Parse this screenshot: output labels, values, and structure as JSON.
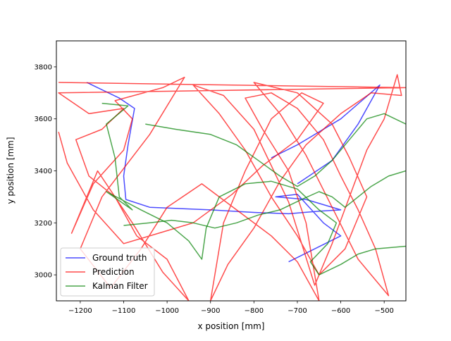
{
  "chart_data": {
    "type": "line",
    "title": "",
    "xlabel": "x position [mm]",
    "ylabel": "y position [mm]",
    "xlim": [
      -1255,
      -450
    ],
    "ylim": [
      2900,
      3900
    ],
    "x_ticks": [
      -1200,
      -1100,
      -1000,
      -900,
      -800,
      -700,
      -600,
      -500
    ],
    "y_ticks": [
      3000,
      3200,
      3400,
      3600,
      3800
    ],
    "grid": false,
    "legend_position": "lower-left",
    "series": [
      {
        "name": "Ground truth",
        "color": "#0000ff",
        "points": [
          [
            -1185,
            3740
          ],
          [
            -1110,
            3680
          ],
          [
            -1075,
            3640
          ],
          [
            -1090,
            3500
          ],
          [
            -1100,
            3380
          ],
          [
            -1095,
            3290
          ],
          [
            -1040,
            3260
          ],
          [
            -900,
            3250
          ],
          [
            -800,
            3240
          ],
          [
            -720,
            3235
          ],
          [
            -650,
            3245
          ],
          [
            -600,
            3250
          ],
          [
            -680,
            3290
          ],
          [
            -750,
            3300
          ],
          [
            -700,
            3310
          ],
          [
            -640,
            3200
          ],
          [
            -600,
            3150
          ],
          [
            -720,
            3050
          ]
        ]
      },
      {
        "name": "Ground truth",
        "color": "#0000ff",
        "points": [
          [
            -760,
            3450
          ],
          [
            -700,
            3500
          ],
          [
            -600,
            3600
          ],
          [
            -510,
            3730
          ],
          [
            -560,
            3580
          ],
          [
            -620,
            3440
          ],
          [
            -700,
            3350
          ]
        ]
      },
      {
        "name": "Prediction",
        "color": "#ff0000",
        "points": [
          [
            -1250,
            3740
          ],
          [
            -450,
            3720
          ],
          [
            -1250,
            3700
          ],
          [
            -1180,
            3620
          ],
          [
            -1100,
            3640
          ],
          [
            -1150,
            3560
          ],
          [
            -1210,
            3520
          ],
          [
            -1180,
            3380
          ],
          [
            -1120,
            3300
          ],
          [
            -1070,
            3150
          ],
          [
            -1000,
            3060
          ],
          [
            -950,
            2900
          ],
          [
            -1010,
            3010
          ],
          [
            -1080,
            3200
          ],
          [
            -1160,
            3400
          ],
          [
            -1220,
            3160
          ],
          [
            -1170,
            3350
          ],
          [
            -1100,
            3480
          ],
          [
            -1080,
            3600
          ],
          [
            -1120,
            3670
          ],
          [
            -1010,
            3720
          ],
          [
            -960,
            3760
          ],
          [
            -1040,
            3540
          ],
          [
            -1150,
            3300
          ],
          [
            -1200,
            3100
          ],
          [
            -1130,
            2950
          ],
          [
            -1060,
            3100
          ],
          [
            -1000,
            3260
          ],
          [
            -920,
            3350
          ],
          [
            -840,
            3250
          ],
          [
            -760,
            3150
          ],
          [
            -700,
            3050
          ],
          [
            -650,
            2900
          ],
          [
            -680,
            3200
          ],
          [
            -720,
            3400
          ],
          [
            -780,
            3560
          ],
          [
            -820,
            3680
          ],
          [
            -760,
            3700
          ],
          [
            -700,
            3640
          ],
          [
            -640,
            3520
          ],
          [
            -600,
            3380
          ],
          [
            -560,
            3250
          ],
          [
            -520,
            3100
          ],
          [
            -490,
            2920
          ],
          [
            -560,
            3060
          ],
          [
            -620,
            3260
          ],
          [
            -680,
            3460
          ],
          [
            -740,
            3620
          ],
          [
            -800,
            3740
          ],
          [
            -700,
            3700
          ],
          [
            -620,
            3580
          ],
          [
            -580,
            3450
          ],
          [
            -540,
            3300
          ],
          [
            -590,
            3100
          ],
          [
            -650,
            3000
          ],
          [
            -700,
            3150
          ],
          [
            -760,
            3300
          ],
          [
            -820,
            3480
          ],
          [
            -880,
            3620
          ],
          [
            -940,
            3730
          ],
          [
            -870,
            3690
          ],
          [
            -800,
            3560
          ],
          [
            -760,
            3420
          ],
          [
            -720,
            3280
          ],
          [
            -690,
            3120
          ],
          [
            -660,
            2960
          ],
          [
            -620,
            3120
          ],
          [
            -580,
            3300
          ],
          [
            -540,
            3480
          ],
          [
            -500,
            3600
          ],
          [
            -470,
            3770
          ],
          [
            -460,
            3690
          ],
          [
            -530,
            3700
          ],
          [
            -600,
            3620
          ],
          [
            -680,
            3500
          ],
          [
            -740,
            3360
          ],
          [
            -800,
            3180
          ],
          [
            -860,
            3040
          ],
          [
            -900,
            2900
          ],
          [
            -870,
            3200
          ],
          [
            -820,
            3400
          ],
          [
            -760,
            3600
          ],
          [
            -690,
            3700
          ],
          [
            -640,
            3660
          ],
          [
            -700,
            3520
          ],
          [
            -780,
            3420
          ],
          [
            -850,
            3310
          ],
          [
            -940,
            3200
          ],
          [
            -1020,
            3160
          ],
          [
            -1100,
            3120
          ],
          [
            -1170,
            3250
          ],
          [
            -1230,
            3430
          ],
          [
            -1250,
            3550
          ]
        ]
      },
      {
        "name": "Kalman Filter",
        "color": "#008000",
        "points": [
          [
            -1150,
            3660
          ],
          [
            -1090,
            3650
          ],
          [
            -1140,
            3580
          ],
          [
            -1120,
            3450
          ],
          [
            -1110,
            3300
          ],
          [
            -1080,
            3250
          ],
          [
            -1140,
            3320
          ],
          [
            -1060,
            3250
          ],
          [
            -1000,
            3200
          ],
          [
            -950,
            3130
          ],
          [
            -920,
            3060
          ],
          [
            -910,
            3180
          ],
          [
            -880,
            3300
          ],
          [
            -820,
            3350
          ],
          [
            -760,
            3360
          ],
          [
            -700,
            3330
          ],
          [
            -650,
            3250
          ],
          [
            -610,
            3200
          ],
          [
            -630,
            3120
          ],
          [
            -670,
            3050
          ],
          [
            -650,
            3000
          ],
          [
            -600,
            3040
          ],
          [
            -560,
            3080
          ],
          [
            -520,
            3100
          ],
          [
            -450,
            3110
          ]
        ]
      },
      {
        "name": "Kalman Filter",
        "color": "#008000",
        "points": [
          [
            -1050,
            3580
          ],
          [
            -980,
            3560
          ],
          [
            -900,
            3540
          ],
          [
            -840,
            3500
          ],
          [
            -790,
            3440
          ],
          [
            -740,
            3380
          ],
          [
            -700,
            3340
          ],
          [
            -660,
            3380
          ],
          [
            -620,
            3440
          ],
          [
            -580,
            3520
          ],
          [
            -540,
            3600
          ],
          [
            -500,
            3620
          ],
          [
            -450,
            3580
          ]
        ]
      },
      {
        "name": "Kalman Filter",
        "color": "#008000",
        "points": [
          [
            -1100,
            3190
          ],
          [
            -1040,
            3200
          ],
          [
            -990,
            3210
          ],
          [
            -940,
            3200
          ],
          [
            -890,
            3180
          ],
          [
            -840,
            3200
          ],
          [
            -790,
            3230
          ],
          [
            -740,
            3250
          ],
          [
            -690,
            3290
          ],
          [
            -650,
            3320
          ],
          [
            -620,
            3300
          ],
          [
            -590,
            3260
          ],
          [
            -560,
            3300
          ],
          [
            -530,
            3340
          ],
          [
            -490,
            3380
          ],
          [
            -450,
            3400
          ]
        ]
      }
    ],
    "legend": [
      {
        "label": "Ground truth",
        "color": "#0000ff"
      },
      {
        "label": "Prediction",
        "color": "#ff0000"
      },
      {
        "label": "Kalman Filter",
        "color": "#008000"
      }
    ]
  }
}
